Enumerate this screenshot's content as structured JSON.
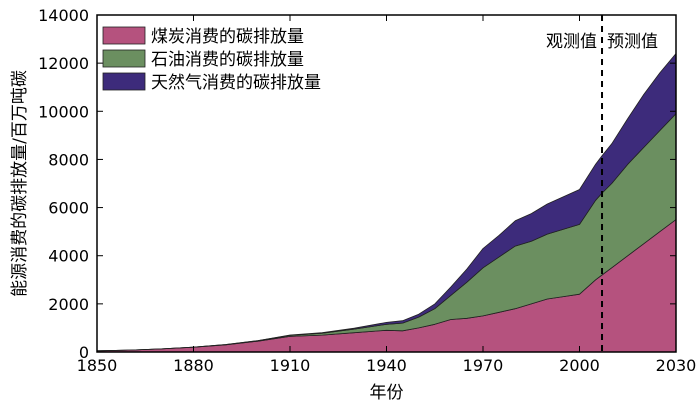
{
  "chart_data": {
    "type": "area",
    "title": "",
    "xlabel": "年份",
    "ylabel": "能源消费的碳排放量/百万吨碳",
    "xlim": [
      1850,
      2030
    ],
    "ylim": [
      0,
      14000
    ],
    "xticks": [
      1850,
      1880,
      1910,
      1940,
      1970,
      2000,
      2030
    ],
    "yticks": [
      0,
      2000,
      4000,
      6000,
      8000,
      10000,
      12000,
      14000
    ],
    "divider_x": 2007,
    "annotations": [
      "观测值",
      "预测值"
    ],
    "legend_position": "top-left",
    "x": [
      1850,
      1860,
      1870,
      1880,
      1890,
      1900,
      1910,
      1920,
      1930,
      1940,
      1945,
      1950,
      1955,
      1960,
      1965,
      1970,
      1975,
      1980,
      1985,
      1990,
      1995,
      2000,
      2005,
      2007,
      2010,
      2015,
      2020,
      2025,
      2030
    ],
    "series": [
      {
        "name": "煤炭消费的碳排放量",
        "color": "#b5527e",
        "values": [
          50,
          80,
          130,
          200,
          300,
          450,
          650,
          700,
          800,
          900,
          880,
          1000,
          1150,
          1350,
          1400,
          1500,
          1650,
          1800,
          2000,
          2200,
          2300,
          2400,
          3000,
          3200,
          3500,
          4000,
          4500,
          5000,
          5500
        ]
      },
      {
        "name": "石油消费的碳排放量",
        "color": "#6b8f60",
        "values": [
          0,
          0,
          0,
          5,
          10,
          20,
          40,
          80,
          150,
          250,
          320,
          450,
          650,
          1000,
          1500,
          2000,
          2300,
          2600,
          2600,
          2700,
          2800,
          2900,
          3300,
          3400,
          3500,
          3800,
          4000,
          4200,
          4400
        ]
      },
      {
        "name": "天然气消费的碳排放量",
        "color": "#3d2b7b",
        "values": [
          0,
          0,
          0,
          0,
          0,
          5,
          15,
          25,
          40,
          80,
          100,
          120,
          200,
          350,
          550,
          800,
          900,
          1050,
          1150,
          1250,
          1350,
          1450,
          1500,
          1550,
          1650,
          1900,
          2200,
          2400,
          2500
        ]
      }
    ]
  }
}
